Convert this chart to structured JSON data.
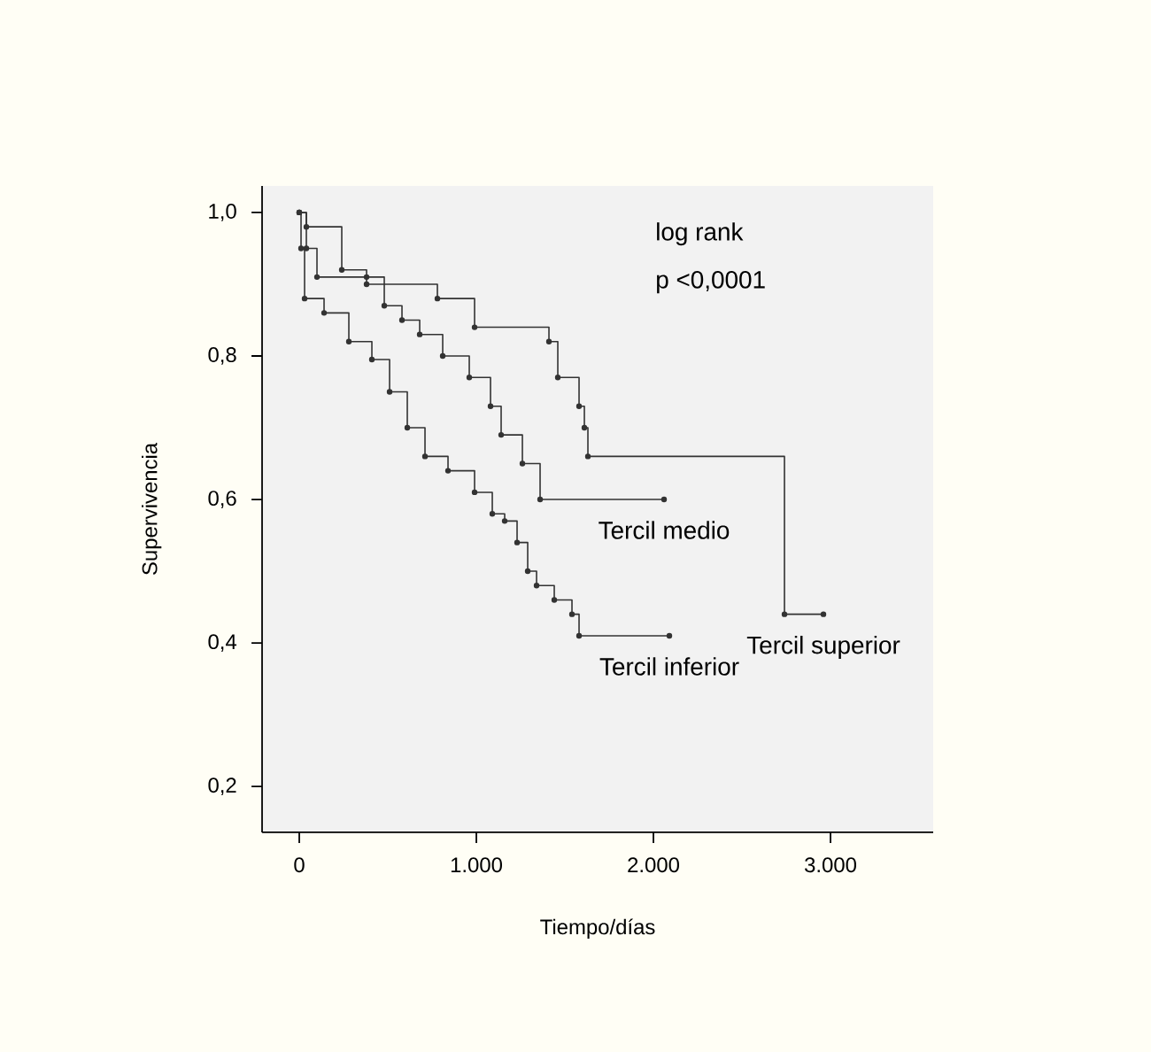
{
  "chart_data": {
    "type": "step",
    "xlabel": "Tiempo/días",
    "ylabel": "Supervivencia",
    "annotations": [
      "log rank",
      "p <0,0001"
    ],
    "xlim": [
      -210,
      3580
    ],
    "ylim": [
      0.136,
      1.037
    ],
    "xticks": [
      {
        "value": 0,
        "label": "0"
      },
      {
        "value": 1000,
        "label": "1.000"
      },
      {
        "value": 2000,
        "label": "2.000"
      },
      {
        "value": 3000,
        "label": "3.000"
      }
    ],
    "yticks": [
      {
        "value": 0.2,
        "label": "0,2"
      },
      {
        "value": 0.4,
        "label": "0,4"
      },
      {
        "value": 0.6,
        "label": "0,6"
      },
      {
        "value": 0.8,
        "label": "0,8"
      },
      {
        "value": 1.0,
        "label": "1,0"
      }
    ],
    "grid": false,
    "legend": false,
    "marker": "circle",
    "line_style": "solid",
    "series": [
      {
        "name": "Tercil superior",
        "color": "#333333",
        "x": [
          0,
          40,
          100,
          380,
          780,
          990,
          1410,
          1460,
          1580,
          1610,
          1630,
          2740,
          2960
        ],
        "values": [
          1.0,
          0.95,
          0.91,
          0.9,
          0.88,
          0.84,
          0.82,
          0.77,
          0.73,
          0.7,
          0.66,
          0.44,
          0.44
        ]
      },
      {
        "name": "Tercil medio",
        "color": "#333333",
        "x": [
          0,
          40,
          240,
          380,
          480,
          580,
          680,
          810,
          960,
          1080,
          1140,
          1260,
          1360,
          2060
        ],
        "values": [
          1.0,
          0.98,
          0.92,
          0.91,
          0.87,
          0.85,
          0.83,
          0.8,
          0.77,
          0.73,
          0.69,
          0.65,
          0.6,
          0.6
        ]
      },
      {
        "name": "Tercil inferior",
        "color": "#333333",
        "x": [
          0,
          10,
          30,
          140,
          280,
          410,
          510,
          610,
          710,
          840,
          990,
          1090,
          1160,
          1230,
          1290,
          1340,
          1440,
          1540,
          1580,
          2090
        ],
        "values": [
          1.0,
          0.95,
          0.88,
          0.86,
          0.82,
          0.795,
          0.75,
          0.7,
          0.66,
          0.64,
          0.61,
          0.58,
          0.57,
          0.54,
          0.5,
          0.48,
          0.46,
          0.44,
          0.41,
          0.41
        ]
      }
    ]
  }
}
